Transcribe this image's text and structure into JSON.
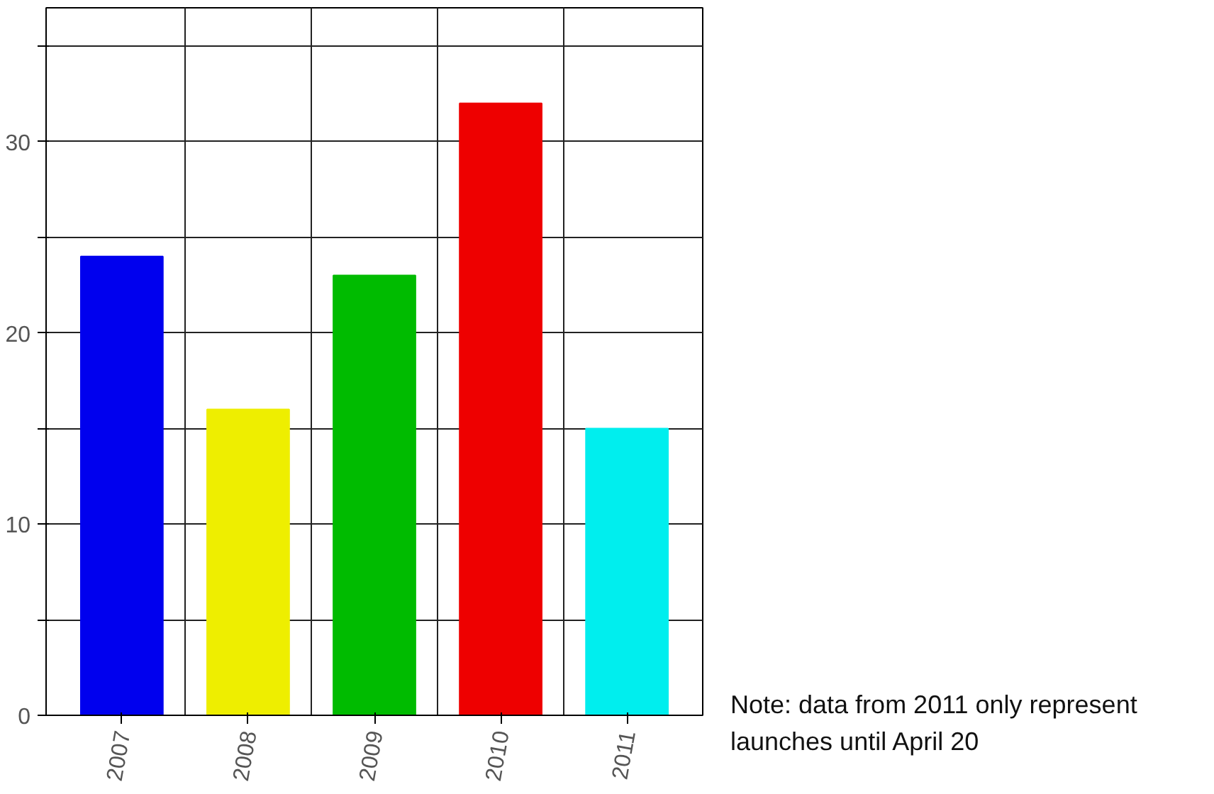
{
  "chart_data": {
    "type": "bar",
    "categories": [
      "2007",
      "2008",
      "2009",
      "2010",
      "2011"
    ],
    "values": [
      24,
      16,
      23,
      32,
      15
    ],
    "colors": [
      "#0000ee",
      "#eeee00",
      "#00bb00",
      "#ee0000",
      "#00eeee"
    ],
    "ylim": [
      0,
      37
    ],
    "yticks": [
      0,
      {
        "value": 5,
        "label": null
      },
      10,
      {
        "value": 15,
        "label": null
      },
      20,
      {
        "value": 25,
        "label": null
      },
      30,
      {
        "value": 35,
        "label": null
      }
    ],
    "grid": true,
    "annotations": [
      "Note: data from 2011 only represent launches until April 20"
    ]
  }
}
